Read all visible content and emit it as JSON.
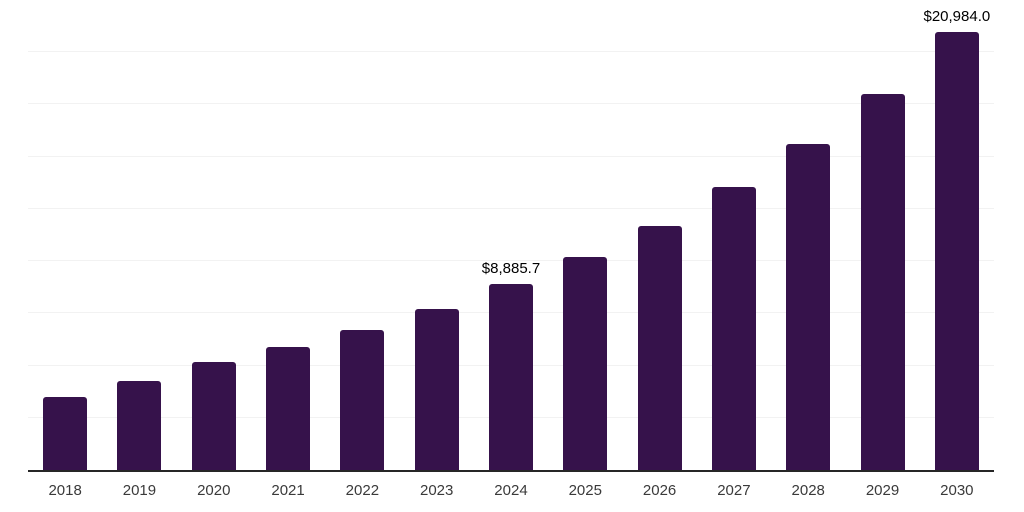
{
  "chart_data": {
    "type": "bar",
    "title": "",
    "xlabel": "",
    "ylabel": "",
    "categories": [
      "2018",
      "2019",
      "2020",
      "2021",
      "2022",
      "2023",
      "2024",
      "2025",
      "2026",
      "2027",
      "2028",
      "2029",
      "2030"
    ],
    "values": [
      3500,
      4260,
      5170,
      5890,
      6700,
      7700,
      8885.7,
      10190,
      11680,
      13540,
      15600,
      18000,
      20984.0
    ],
    "value_labels": [
      {
        "category": "2024",
        "text": "$8,885.7"
      },
      {
        "category": "2030",
        "text": "$20,984.0"
      }
    ],
    "ylim": [
      0,
      22500
    ],
    "gridline_interval": 2500,
    "grid": "horizontal",
    "legend": "none",
    "y_axis_tick_labels": "none",
    "colors": {
      "bar": "#36124B",
      "gridline": "#f2f2f2",
      "axis_line": "#262626",
      "value_label_text": "#000000",
      "tick_label_text": "#3a3a3a",
      "background": "#ffffff"
    }
  }
}
